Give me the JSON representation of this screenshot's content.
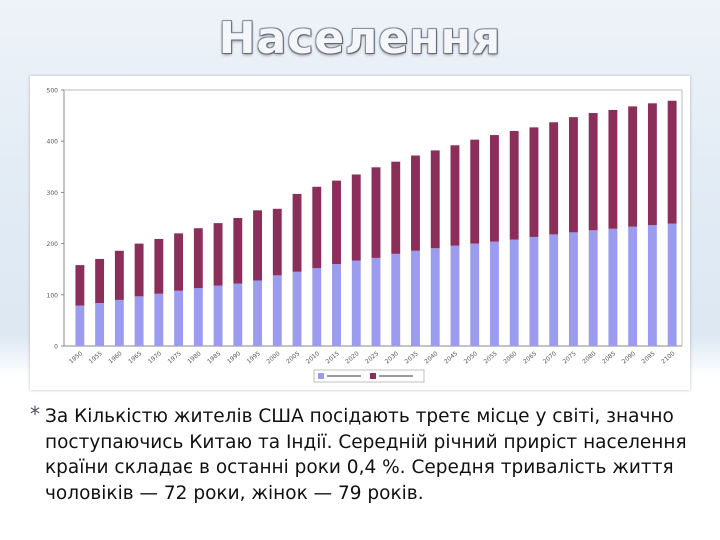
{
  "slide": {
    "title": "Населення",
    "bullet_marker": "*",
    "bullet_text": "За Кількістю жителів США посідають третє місце у світі, значно поступаючись Китаю та Індії. Середній річний приріст населення країни складає в останні роки 0,4 %. Середня тривалість життя чоловіків — 72 роки, жінок — 79 років."
  },
  "chart_data": {
    "type": "bar",
    "stacked": true,
    "categories": [
      "1950",
      "1955",
      "1960",
      "1965",
      "1970",
      "1975",
      "1980",
      "1985",
      "1990",
      "1995",
      "2000",
      "2005",
      "2010",
      "2015",
      "2020",
      "2025",
      "2030",
      "2035",
      "2040",
      "2045",
      "2050",
      "2055",
      "2060",
      "2065",
      "2070",
      "2075",
      "2080",
      "2085",
      "2090",
      "2095",
      "2100"
    ],
    "series": [
      {
        "name": "",
        "color": "#9b9bf0",
        "values": [
          79,
          84,
          90,
          97,
          102,
          108,
          113,
          118,
          122,
          128,
          138,
          145,
          152,
          160,
          167,
          172,
          180,
          186,
          191,
          196,
          200,
          204,
          208,
          213,
          218,
          222,
          226,
          229,
          233,
          236,
          239
        ]
      },
      {
        "name": "",
        "color": "#8b2e5a",
        "values": [
          79,
          86,
          96,
          103,
          107,
          112,
          117,
          122,
          128,
          137,
          130,
          152,
          159,
          163,
          168,
          177,
          180,
          186,
          191,
          196,
          203,
          208,
          212,
          214,
          219,
          225,
          229,
          232,
          235,
          238,
          240
        ]
      }
    ],
    "y_ticks": [
      "0",
      "100",
      "200",
      "300",
      "400",
      "500"
    ],
    "ylim": [
      0,
      500
    ],
    "grid": false,
    "legend_position": "bottom"
  }
}
